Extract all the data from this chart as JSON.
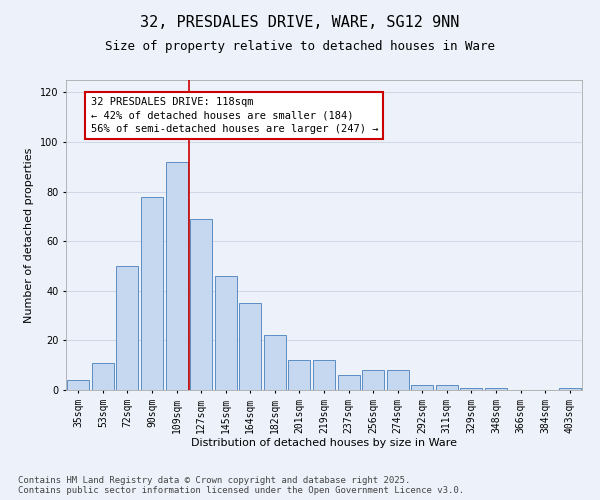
{
  "title_line1": "32, PRESDALES DRIVE, WARE, SG12 9NN",
  "title_line2": "Size of property relative to detached houses in Ware",
  "xlabel": "Distribution of detached houses by size in Ware",
  "ylabel": "Number of detached properties",
  "categories": [
    "35sqm",
    "53sqm",
    "72sqm",
    "90sqm",
    "109sqm",
    "127sqm",
    "145sqm",
    "164sqm",
    "182sqm",
    "201sqm",
    "219sqm",
    "237sqm",
    "256sqm",
    "274sqm",
    "292sqm",
    "311sqm",
    "329sqm",
    "348sqm",
    "366sqm",
    "384sqm",
    "403sqm"
  ],
  "values": [
    4,
    11,
    50,
    78,
    92,
    69,
    46,
    35,
    22,
    12,
    12,
    6,
    8,
    8,
    2,
    2,
    1,
    1,
    0,
    0,
    1
  ],
  "bar_color": "#c5d8f0",
  "bar_edge_color": "#5b8ec4",
  "grid_color": "#d0d8e8",
  "background_color": "#edf2fa",
  "annotation_box_color": "#ffffff",
  "annotation_box_edge": "#cc0000",
  "annotation_text": "32 PRESDALES DRIVE: 118sqm\n← 42% of detached houses are smaller (184)\n56% of semi-detached houses are larger (247) →",
  "vline_color": "#cc0000",
  "ylim": [
    0,
    125
  ],
  "yticks": [
    0,
    20,
    40,
    60,
    80,
    100,
    120
  ],
  "footer_line1": "Contains HM Land Registry data © Crown copyright and database right 2025.",
  "footer_line2": "Contains public sector information licensed under the Open Government Licence v3.0.",
  "title_fontsize": 11,
  "subtitle_fontsize": 9,
  "axis_label_fontsize": 8,
  "tick_fontsize": 7,
  "annotation_fontsize": 7.5,
  "footer_fontsize": 6.5
}
